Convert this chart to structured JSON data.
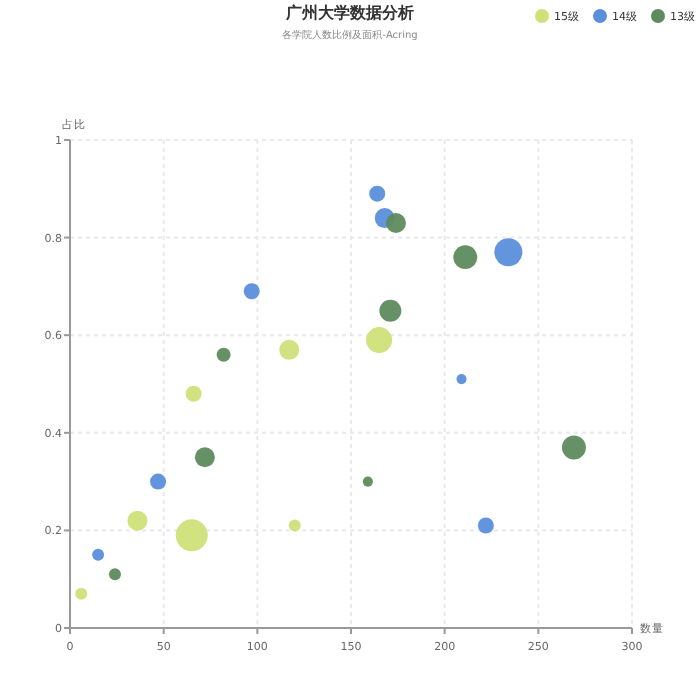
{
  "chart_data": {
    "type": "bubble",
    "title": "广州大学数据分析",
    "subtitle": "各学院人数比例及面积-Acring",
    "xlabel": "数量",
    "ylabel": "占比",
    "xlim": [
      0,
      300
    ],
    "xticks": [
      0,
      50,
      100,
      150,
      200,
      250,
      300
    ],
    "ylim": [
      0,
      1
    ],
    "yticks": [
      0,
      0.2,
      0.4,
      0.6,
      0.8,
      1
    ],
    "grid": true,
    "legend": "top right",
    "series": [
      {
        "name": "15级",
        "color": "#cfe27a",
        "x": [
          6,
          36,
          66,
          65,
          117,
          120,
          165
        ],
        "values": [
          0.07,
          0.22,
          0.48,
          0.19,
          0.57,
          0.21,
          0.59
        ],
        "sizes": [
          0.14,
          0.39,
          0.25,
          1,
          0.39,
          0.14,
          0.66
        ]
      },
      {
        "name": "14级",
        "color": "#5b8fdc",
        "x": [
          15,
          47,
          97,
          164,
          168,
          234,
          209,
          222
        ],
        "values": [
          0.15,
          0.3,
          0.69,
          0.89,
          0.84,
          0.77,
          0.51,
          0.21
        ],
        "sizes": [
          0.14,
          0.25,
          0.25,
          0.25,
          0.39,
          0.77,
          0.1,
          0.25
        ]
      },
      {
        "name": "13级",
        "color": "#5e8a5e",
        "x": [
          24,
          72,
          82,
          174,
          211,
          171,
          159,
          269
        ],
        "values": [
          0.11,
          0.35,
          0.56,
          0.83,
          0.76,
          0.65,
          0.3,
          0.37
        ],
        "sizes": [
          0.14,
          0.39,
          0.19,
          0.39,
          0.56,
          0.47,
          0.1,
          0.56
        ]
      }
    ]
  }
}
